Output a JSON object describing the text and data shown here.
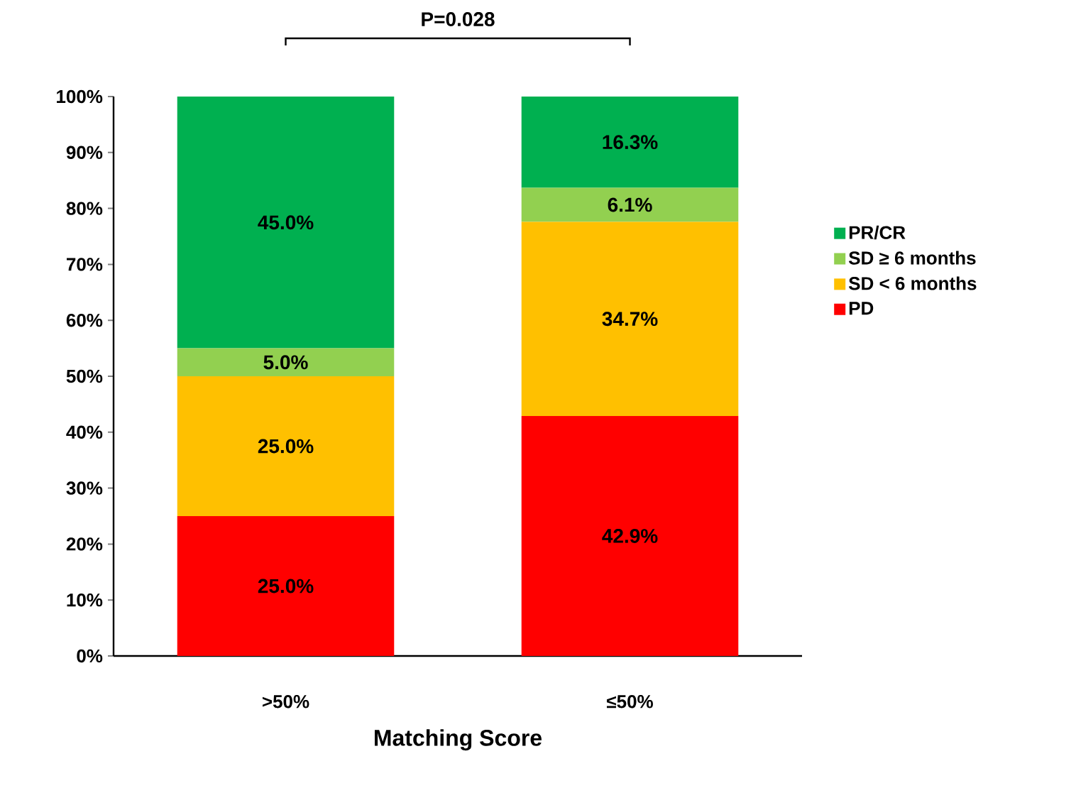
{
  "chart_data": {
    "type": "bar",
    "stacked": true,
    "xlabel": "Matching Score",
    "categories": [
      ">50%",
      "≤50%"
    ],
    "ylim": [
      0,
      100
    ],
    "yticks": [
      {
        "value": 0,
        "label": "0%"
      },
      {
        "value": 10,
        "label": "10%"
      },
      {
        "value": 20,
        "label": "20%"
      },
      {
        "value": 30,
        "label": "30%"
      },
      {
        "value": 40,
        "label": "40%"
      },
      {
        "value": 50,
        "label": "50%"
      },
      {
        "value": 60,
        "label": "60%"
      },
      {
        "value": 70,
        "label": "70%"
      },
      {
        "value": 80,
        "label": "80%"
      },
      {
        "value": 90,
        "label": "90%"
      },
      {
        "value": 100,
        "label": "100%"
      }
    ],
    "legend": "right",
    "annotations": [
      "P=0.028"
    ],
    "series": [
      {
        "name": "PD",
        "color": "#ff0000",
        "values": [
          25.0,
          42.9
        ],
        "value_labels": [
          "25.0%",
          "42.9%"
        ]
      },
      {
        "name": "SD < 6 months",
        "color": "#ffc000",
        "values": [
          25.0,
          34.7
        ],
        "value_labels": [
          "25.0%",
          "34.7%"
        ]
      },
      {
        "name": "SD ≥ 6 months",
        "color": "#92d050",
        "values": [
          5.0,
          6.1
        ],
        "value_labels": [
          "5.0%",
          "6.1%"
        ]
      },
      {
        "name": "PR/CR",
        "color": "#00b050",
        "values": [
          45.0,
          16.3
        ],
        "value_labels": [
          "45.0%",
          "16.3%"
        ]
      }
    ]
  }
}
